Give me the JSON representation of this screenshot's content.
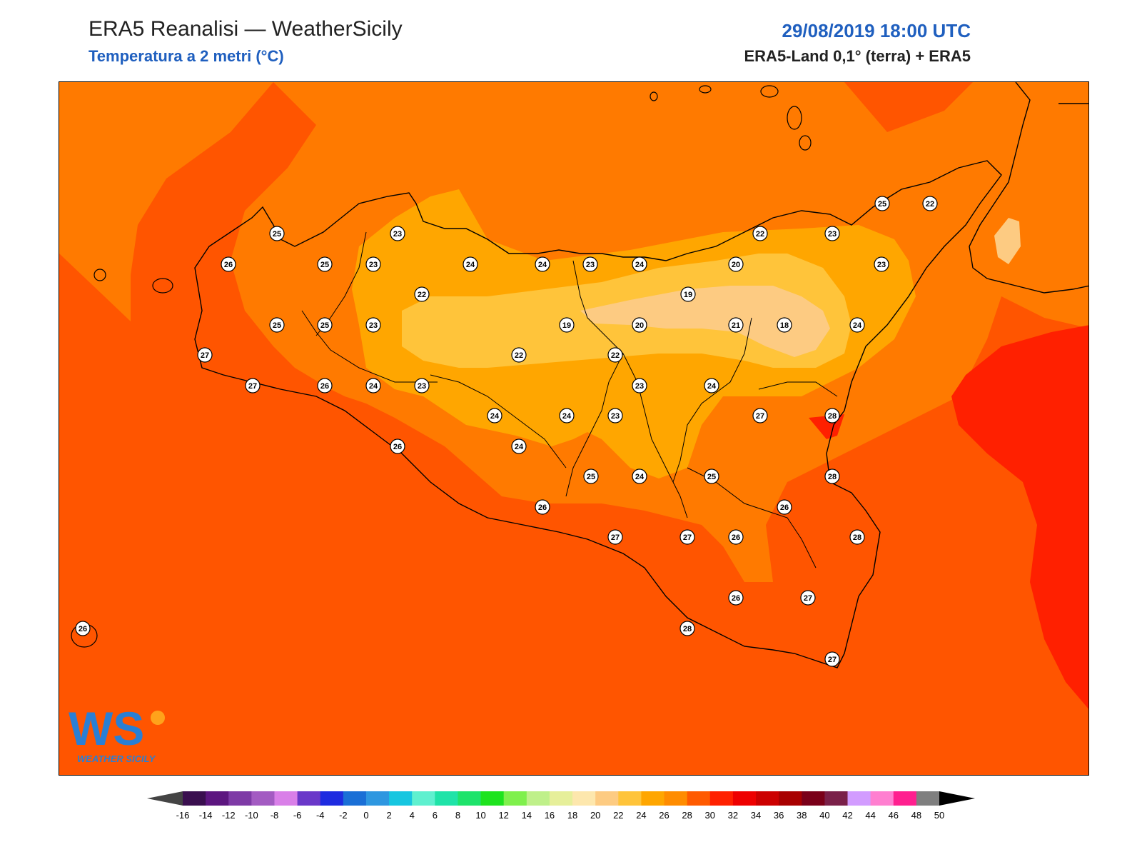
{
  "header": {
    "title": "ERA5 Reanalisi — WeatherSicily",
    "subtitle": "Temperatura a 2 metri (°C)",
    "datetime": "29/08/2019 18:00 UTC",
    "source": "ERA5-Land 0,1° (terra) + ERA5"
  },
  "logo": {
    "mark": "WS",
    "text": "WEATHER SICILY"
  },
  "stations": [
    "25",
    "26",
    "25",
    "23",
    "23",
    "24",
    "24",
    "23",
    "24",
    "22",
    "23",
    "25",
    "22",
    "20",
    "23",
    "19",
    "25",
    "25",
    "23",
    "22",
    "19",
    "20",
    "21",
    "18",
    "24",
    "27",
    "22",
    "22",
    "27",
    "26",
    "24",
    "23",
    "23",
    "24",
    "24",
    "24",
    "23",
    "27",
    "28",
    "24",
    "26",
    "25",
    "24",
    "25",
    "28",
    "26",
    "26",
    "27",
    "27",
    "26",
    "28",
    "26",
    "27",
    "28",
    "27",
    "26"
  ],
  "colorbar": {
    "labels": [
      "-16",
      "-14",
      "-12",
      "-10",
      "-8",
      "-6",
      "-4",
      "-2",
      "0",
      "2",
      "4",
      "6",
      "8",
      "10",
      "12",
      "14",
      "16",
      "18",
      "20",
      "22",
      "24",
      "26",
      "28",
      "30",
      "32",
      "34",
      "36",
      "38",
      "40",
      "42",
      "44",
      "46",
      "48",
      "50"
    ],
    "colors": [
      "#3a0f4f",
      "#5d1680",
      "#7e3aa6",
      "#a35bc2",
      "#d97fe8",
      "#6a38c9",
      "#1e2be0",
      "#1a6fd6",
      "#2e97e0",
      "#17c6e0",
      "#5ff0cf",
      "#1fe3a8",
      "#1ee36b",
      "#1ee31e",
      "#7ff04c",
      "#bff08a",
      "#e6ef9a",
      "#fde7ad",
      "#fdcb82",
      "#ffc43a",
      "#ffa600",
      "#ff8c00",
      "#ff5a00",
      "#ff2000",
      "#ee0000",
      "#cc0000",
      "#a80000",
      "#7a0019",
      "#7a2049",
      "#d29cff",
      "#ff7fd0",
      "#ff1f8f",
      "#7f7f7f",
      "#3a3a3a"
    ],
    "under_color": "#444444",
    "over_color": "#000000"
  }
}
